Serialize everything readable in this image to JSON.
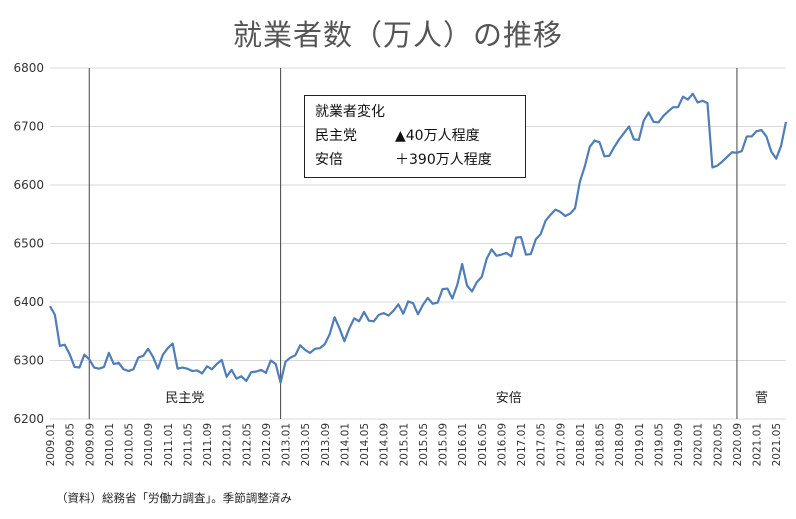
{
  "chart_data": {
    "type": "line",
    "title": "就業者数（万人）の推移",
    "ylim": [
      6200,
      6800
    ],
    "yticks": [
      6200,
      6300,
      6400,
      6500,
      6600,
      6700,
      6800
    ],
    "grid": true,
    "xlabel": "",
    "ylabel": "",
    "xtick_labels": [
      "2009.01",
      "2009.05",
      "2009.09",
      "2010.01",
      "2010.05",
      "2010.09",
      "2011.01",
      "2011.05",
      "2011.09",
      "2012.01",
      "2012.05",
      "2012.09",
      "2013.01",
      "2013.05",
      "2013.09",
      "2014.01",
      "2014.05",
      "2014.09",
      "2015.01",
      "2015.05",
      "2015.09",
      "2016.01",
      "2016.05",
      "2016.09",
      "2017.01",
      "2017.05",
      "2017.09",
      "2018.01",
      "2018.05",
      "2018.09",
      "2019.01",
      "2019.05",
      "2019.09",
      "2020.01",
      "2020.05",
      "2020.09",
      "2021.01",
      "2021.05"
    ],
    "start": "2009.01",
    "end": "2021.07",
    "series_color": "#4f7db8",
    "values": [
      6393,
      6378,
      6325,
      6327,
      6311,
      6289,
      6288,
      6310,
      6302,
      6288,
      6286,
      6289,
      6313,
      6294,
      6296,
      6285,
      6282,
      6285,
      6305,
      6308,
      6320,
      6306,
      6286,
      6310,
      6321,
      6329,
      6286,
      6288,
      6286,
      6282,
      6283,
      6278,
      6290,
      6285,
      6294,
      6301,
      6272,
      6284,
      6269,
      6273,
      6265,
      6280,
      6281,
      6284,
      6279,
      6300,
      6294,
      6262,
      6298,
      6305,
      6309,
      6326,
      6318,
      6313,
      6320,
      6321,
      6328,
      6345,
      6374,
      6355,
      6333,
      6355,
      6372,
      6367,
      6383,
      6368,
      6367,
      6378,
      6381,
      6377,
      6385,
      6396,
      6380,
      6401,
      6398,
      6379,
      6395,
      6407,
      6397,
      6399,
      6422,
      6423,
      6406,
      6429,
      6465,
      6428,
      6418,
      6434,
      6443,
      6474,
      6490,
      6479,
      6481,
      6484,
      6478,
      6510,
      6511,
      6481,
      6482,
      6507,
      6516,
      6539,
      6549,
      6558,
      6554,
      6547,
      6551,
      6560,
      6606,
      6632,
      6665,
      6676,
      6673,
      6649,
      6650,
      6665,
      6678,
      6689,
      6700,
      6678,
      6677,
      6710,
      6724,
      6708,
      6707,
      6718,
      6726,
      6733,
      6733,
      6751,
      6746,
      6756,
      6741,
      6744,
      6740,
      6630,
      6633,
      6640,
      6648,
      6656,
      6655,
      6658,
      6683,
      6683,
      6692,
      6694,
      6683,
      6657,
      6645,
      6667,
      6708
    ],
    "annotations": {
      "lines_at": [
        "2009.09",
        "2012.12",
        "2020.09"
      ],
      "eras": [
        {
          "label": "民主党",
          "from": "2009.09",
          "to": "2012.12"
        },
        {
          "label": "安倍",
          "from": "2012.12",
          "to": "2020.09"
        },
        {
          "label": "菅",
          "from": "2020.09",
          "to": "2021.07"
        }
      ]
    },
    "legend_box": {
      "heading": "就業者変化",
      "rows": [
        {
          "label": "民主党",
          "value": "▲40万人程度"
        },
        {
          "label": "安倍",
          "value": "＋390万人程度"
        }
      ]
    }
  },
  "footnote": "（資料）総務省「労働力調査」。季節調整済み"
}
